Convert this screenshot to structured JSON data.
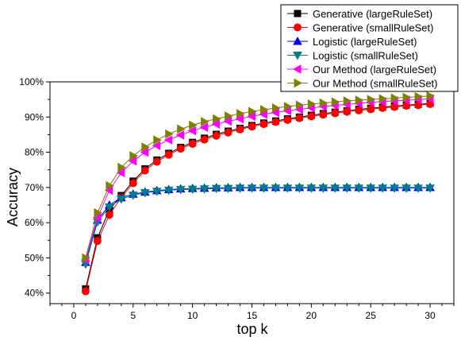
{
  "chart_data": {
    "type": "line",
    "xlabel": "top k",
    "ylabel": "Accuracy",
    "xlim": [
      -2,
      32
    ],
    "ylim": [
      0.37,
      1.0
    ],
    "xticks": [
      0,
      5,
      10,
      15,
      20,
      25,
      30
    ],
    "xtick_labels": [
      "0",
      "5",
      "10",
      "15",
      "20",
      "25",
      "30"
    ],
    "yticks": [
      0.4,
      0.5,
      0.6,
      0.7,
      0.8,
      0.9,
      1.0
    ],
    "ytick_labels": [
      "40%",
      "50%",
      "60%",
      "70%",
      "80%",
      "90%",
      "100%"
    ],
    "legend_position": "top-right",
    "x": [
      1,
      2,
      3,
      4,
      5,
      6,
      7,
      8,
      9,
      10,
      11,
      12,
      13,
      14,
      15,
      16,
      17,
      18,
      19,
      20,
      21,
      22,
      23,
      24,
      25,
      26,
      27,
      28,
      29,
      30
    ],
    "series": [
      {
        "name": "Generative (largeRuleSet)",
        "color": "#000000",
        "marker": "square",
        "values": [
          0.412,
          0.557,
          0.637,
          0.677,
          0.718,
          0.753,
          0.778,
          0.797,
          0.814,
          0.828,
          0.84,
          0.851,
          0.86,
          0.868,
          0.876,
          0.883,
          0.889,
          0.895,
          0.9,
          0.905,
          0.91,
          0.914,
          0.918,
          0.922,
          0.925,
          0.928,
          0.931,
          0.934,
          0.936,
          0.939
        ]
      },
      {
        "name": "Generative (smallRuleSet)",
        "color": "#ff0000",
        "marker": "circle",
        "values": [
          0.405,
          0.548,
          0.622,
          0.672,
          0.712,
          0.748,
          0.773,
          0.793,
          0.81,
          0.824,
          0.836,
          0.847,
          0.856,
          0.865,
          0.873,
          0.88,
          0.886,
          0.892,
          0.897,
          0.902,
          0.907,
          0.911,
          0.915,
          0.919,
          0.922,
          0.926,
          0.929,
          0.932,
          0.934,
          0.937
        ]
      },
      {
        "name": "Logistic (largeRuleSet)",
        "color": "#0000ff",
        "marker": "triangle-up",
        "values": [
          0.487,
          0.607,
          0.65,
          0.671,
          0.681,
          0.687,
          0.691,
          0.694,
          0.696,
          0.697,
          0.698,
          0.699,
          0.699,
          0.7,
          0.7,
          0.7,
          0.7,
          0.7,
          0.7,
          0.7,
          0.7,
          0.7,
          0.7,
          0.7,
          0.7,
          0.7,
          0.7,
          0.7,
          0.7,
          0.7
        ]
      },
      {
        "name": "Logistic (smallRuleSet)",
        "color": "#008080",
        "marker": "triangle-down",
        "values": [
          0.482,
          0.602,
          0.645,
          0.667,
          0.678,
          0.685,
          0.689,
          0.692,
          0.694,
          0.695,
          0.696,
          0.697,
          0.697,
          0.698,
          0.698,
          0.698,
          0.698,
          0.698,
          0.698,
          0.698,
          0.698,
          0.698,
          0.698,
          0.698,
          0.698,
          0.698,
          0.698,
          0.698,
          0.698,
          0.698
        ]
      },
      {
        "name": "Our Method (largeRuleSet)",
        "color": "#ff00ff",
        "marker": "triangle-left",
        "values": [
          0.495,
          0.615,
          0.692,
          0.742,
          0.775,
          0.8,
          0.819,
          0.835,
          0.849,
          0.861,
          0.871,
          0.88,
          0.888,
          0.895,
          0.902,
          0.908,
          0.913,
          0.918,
          0.922,
          0.926,
          0.93,
          0.933,
          0.936,
          0.939,
          0.942,
          0.944,
          0.946,
          0.948,
          0.95,
          0.952
        ]
      },
      {
        "name": "Our Method (smallRuleSet)",
        "color": "#808000",
        "marker": "triangle-right",
        "values": [
          0.5,
          0.628,
          0.705,
          0.757,
          0.79,
          0.815,
          0.835,
          0.852,
          0.866,
          0.877,
          0.887,
          0.895,
          0.903,
          0.91,
          0.916,
          0.921,
          0.926,
          0.93,
          0.934,
          0.937,
          0.94,
          0.943,
          0.946,
          0.948,
          0.95,
          0.952,
          0.954,
          0.956,
          0.958,
          0.96
        ]
      }
    ]
  }
}
